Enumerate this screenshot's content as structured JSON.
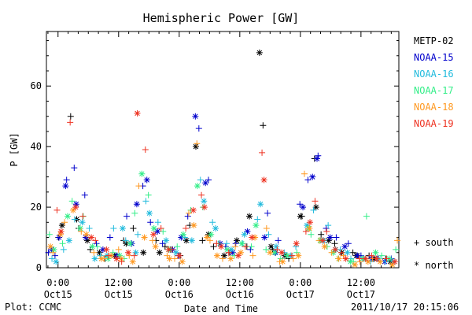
{
  "footer": {
    "plot_label": "Plot: CCMC",
    "timestamp": "2011/10/17 20:15:06"
  },
  "chart_data": {
    "type": "scatter",
    "title": "Hemispheric Power [GW]",
    "xlabel": "Date and Time",
    "ylabel": "P [GW]",
    "x_unit": "hours since 2011-10-15 00:00 UT",
    "xlim": [
      -2.3,
      67.5
    ],
    "ylim": [
      0,
      78
    ],
    "y_ticks": [
      0,
      20,
      40,
      60
    ],
    "x_ticks": [
      {
        "x": 0,
        "line1": "0:00",
        "line2": "Oct15"
      },
      {
        "x": 12,
        "line1": "12:00",
        "line2": "Oct15"
      },
      {
        "x": 24,
        "line1": "0:00",
        "line2": "Oct16"
      },
      {
        "x": 36,
        "line1": "12:00",
        "line2": "Oct16"
      },
      {
        "x": 48,
        "line1": "0:00",
        "line2": "Oct17"
      },
      {
        "x": 60,
        "line1": "12:00",
        "line2": "Oct17"
      }
    ],
    "marker_legend": [
      {
        "symbol": "+",
        "label": "south"
      },
      {
        "symbol": "*",
        "label": "north"
      }
    ],
    "series": [
      {
        "name": "METP-02",
        "color": "#000000",
        "south": [
          [
            0.1,
            10
          ],
          [
            2.5,
            50
          ],
          [
            4.1,
            13
          ],
          [
            6.4,
            6
          ],
          [
            9.3,
            3
          ],
          [
            13,
            9
          ],
          [
            14.9,
            13
          ],
          [
            19.4,
            9
          ],
          [
            21.2,
            7
          ],
          [
            24.2,
            4
          ],
          [
            26.1,
            14
          ],
          [
            28.6,
            9
          ],
          [
            30.8,
            7
          ],
          [
            34,
            5
          ],
          [
            37.4,
            7
          ],
          [
            40.6,
            47
          ],
          [
            42.5,
            6
          ],
          [
            45.7,
            3
          ],
          [
            48.3,
            17
          ],
          [
            50.8,
            36
          ],
          [
            52.1,
            11
          ],
          [
            54.8,
            8
          ],
          [
            58.4,
            5
          ],
          [
            61.6,
            4
          ],
          [
            64.9,
            3
          ]
        ],
        "north": [
          [
            0.8,
            14
          ],
          [
            3.7,
            16
          ],
          [
            5.8,
            9
          ],
          [
            8.2,
            5
          ],
          [
            11.2,
            4
          ],
          [
            13.5,
            8
          ],
          [
            16.9,
            5
          ],
          [
            20.1,
            5
          ],
          [
            22.3,
            6
          ],
          [
            25.4,
            9
          ],
          [
            27.3,
            40
          ],
          [
            29.8,
            11
          ],
          [
            32.9,
            4
          ],
          [
            35.4,
            9
          ],
          [
            37.9,
            17
          ],
          [
            39.9,
            71
          ],
          [
            42.2,
            7
          ],
          [
            44.9,
            4
          ],
          [
            48,
            17
          ],
          [
            51.1,
            20
          ],
          [
            53.6,
            9
          ],
          [
            56.2,
            5
          ],
          [
            59.1,
            4
          ],
          [
            62.6,
            3
          ],
          [
            65.8,
            2
          ]
        ]
      },
      {
        "name": "NOAA-15",
        "color": "#0000cc",
        "south": [
          [
            -1.9,
            5
          ],
          [
            -0.6,
            4
          ],
          [
            1.7,
            29
          ],
          [
            3.2,
            33
          ],
          [
            5.3,
            24
          ],
          [
            7.6,
            8
          ],
          [
            10.3,
            10
          ],
          [
            13.6,
            17
          ],
          [
            16.8,
            27
          ],
          [
            18.3,
            15
          ],
          [
            20.7,
            8
          ],
          [
            23.8,
            4
          ],
          [
            25.7,
            17
          ],
          [
            27.9,
            46
          ],
          [
            29.8,
            29
          ],
          [
            33.2,
            7
          ],
          [
            35.2,
            8
          ],
          [
            38.1,
            6
          ],
          [
            41.5,
            18
          ],
          [
            43.6,
            9
          ],
          [
            47.9,
            21
          ],
          [
            49.5,
            29
          ],
          [
            51.5,
            37
          ],
          [
            53.1,
            13
          ],
          [
            55.1,
            10
          ],
          [
            57.5,
            8
          ],
          [
            60,
            4
          ],
          [
            63.3,
            3
          ],
          [
            66,
            3
          ]
        ],
        "north": [
          [
            -1.3,
            6
          ],
          [
            0.2,
            10
          ],
          [
            1.5,
            27
          ],
          [
            3.6,
            21
          ],
          [
            5.5,
            10
          ],
          [
            8.9,
            6
          ],
          [
            11.7,
            4
          ],
          [
            14.6,
            8
          ],
          [
            15.6,
            21
          ],
          [
            17.6,
            29
          ],
          [
            19.7,
            12
          ],
          [
            22.7,
            6
          ],
          [
            24.4,
            10
          ],
          [
            27.2,
            50
          ],
          [
            29.2,
            28
          ],
          [
            32.1,
            8
          ],
          [
            34.6,
            5
          ],
          [
            37.5,
            12
          ],
          [
            40.9,
            10
          ],
          [
            43.1,
            5
          ],
          [
            48.5,
            20
          ],
          [
            50.4,
            30
          ],
          [
            51.3,
            36
          ],
          [
            53.9,
            10
          ],
          [
            56.8,
            7
          ],
          [
            59.3,
            4
          ],
          [
            62,
            3
          ],
          [
            64.7,
            2
          ]
        ]
      },
      {
        "name": "NOAA-16",
        "color": "#22bbdd",
        "south": [
          [
            -1.2,
            3
          ],
          [
            1.1,
            6
          ],
          [
            3.3,
            16
          ],
          [
            6.2,
            13
          ],
          [
            8.4,
            4
          ],
          [
            11,
            13
          ],
          [
            13.4,
            9
          ],
          [
            15.8,
            11
          ],
          [
            17.4,
            22
          ],
          [
            19.8,
            15
          ],
          [
            22.4,
            6
          ],
          [
            25.1,
            10
          ],
          [
            28.2,
            29
          ],
          [
            30.6,
            15
          ],
          [
            33.4,
            8
          ],
          [
            36.6,
            8
          ],
          [
            39.5,
            16
          ],
          [
            41.7,
            11
          ],
          [
            44.8,
            5
          ],
          [
            47.1,
            7
          ],
          [
            50.6,
            19
          ],
          [
            53.5,
            14
          ],
          [
            55.9,
            6
          ],
          [
            58,
            3
          ],
          [
            61.9,
            2
          ],
          [
            64.8,
            2
          ]
        ],
        "north": [
          [
            -0.4,
            2
          ],
          [
            2.2,
            9
          ],
          [
            4.8,
            15
          ],
          [
            7.3,
            3
          ],
          [
            9.7,
            4
          ],
          [
            12.8,
            13
          ],
          [
            15.4,
            5
          ],
          [
            18.1,
            18
          ],
          [
            21.4,
            9
          ],
          [
            23.4,
            5
          ],
          [
            26.5,
            9
          ],
          [
            28.9,
            22
          ],
          [
            31.2,
            13
          ],
          [
            34.3,
            6
          ],
          [
            36.9,
            11
          ],
          [
            40.1,
            21
          ],
          [
            43.2,
            7
          ],
          [
            46.1,
            4
          ],
          [
            49.3,
            14
          ],
          [
            52.6,
            9
          ],
          [
            55,
            6
          ],
          [
            57.3,
            5
          ],
          [
            60.6,
            3
          ],
          [
            63.5,
            3
          ],
          [
            66.4,
            2
          ]
        ]
      },
      {
        "name": "NOAA-17",
        "color": "#33ee88",
        "south": [
          [
            -1.7,
            11
          ],
          [
            0.9,
            8
          ],
          [
            2.8,
            22
          ],
          [
            5,
            17
          ],
          [
            7.8,
            7
          ],
          [
            10.9,
            5
          ],
          [
            13.1,
            3
          ],
          [
            15.2,
            18
          ],
          [
            17.9,
            24
          ],
          [
            20.8,
            12
          ],
          [
            23.6,
            7
          ],
          [
            26.3,
            19
          ],
          [
            28.7,
            20
          ],
          [
            31.8,
            8
          ],
          [
            34.9,
            4
          ],
          [
            38.3,
            7
          ],
          [
            41.2,
            6
          ],
          [
            44.1,
            3
          ],
          [
            47.3,
            5
          ],
          [
            50.1,
            11
          ],
          [
            53.3,
            7
          ],
          [
            55.5,
            3
          ],
          [
            58.5,
            2
          ],
          [
            61.1,
            17
          ],
          [
            64.1,
            4
          ],
          [
            66.9,
            6
          ]
        ],
        "north": [
          [
            -0.8,
            6
          ],
          [
            1.9,
            17
          ],
          [
            4.4,
            13
          ],
          [
            6.8,
            7
          ],
          [
            9.9,
            3
          ],
          [
            12.2,
            4
          ],
          [
            14.3,
            8
          ],
          [
            16.6,
            31
          ],
          [
            19,
            13
          ],
          [
            22,
            6
          ],
          [
            24.8,
            11
          ],
          [
            27.6,
            27
          ],
          [
            30.3,
            11
          ],
          [
            33.5,
            6
          ],
          [
            36.4,
            8
          ],
          [
            39.2,
            14
          ],
          [
            42.9,
            5
          ],
          [
            45.4,
            4
          ],
          [
            49.6,
            13
          ],
          [
            51.9,
            9
          ],
          [
            54.5,
            5
          ],
          [
            57.9,
            2
          ],
          [
            60.3,
            3
          ],
          [
            62.9,
            5
          ],
          [
            65.6,
            3
          ]
        ]
      },
      {
        "name": "NOAA-18",
        "color": "#ff9922",
        "south": [
          [
            -1,
            5
          ],
          [
            1.3,
            15
          ],
          [
            4.6,
            12
          ],
          [
            7.1,
            5
          ],
          [
            9.1,
            3
          ],
          [
            12,
            6
          ],
          [
            14.1,
            4
          ],
          [
            16,
            27
          ],
          [
            18.7,
            9
          ],
          [
            21.6,
            4
          ],
          [
            23.1,
            3
          ],
          [
            25.9,
            18
          ],
          [
            27.5,
            41
          ],
          [
            30.1,
            9
          ],
          [
            32.6,
            3
          ],
          [
            35.1,
            7
          ],
          [
            38.6,
            4
          ],
          [
            41.3,
            13
          ],
          [
            43.9,
            2
          ],
          [
            46.6,
            3
          ],
          [
            48.8,
            31
          ],
          [
            51.7,
            9
          ],
          [
            54.2,
            5
          ],
          [
            56.5,
            4
          ],
          [
            59.8,
            2
          ],
          [
            62.3,
            3
          ],
          [
            67.2,
            9
          ]
        ],
        "north": [
          [
            -1.5,
            7
          ],
          [
            0.5,
            11
          ],
          [
            3,
            19
          ],
          [
            5.6,
            11
          ],
          [
            8.6,
            3
          ],
          [
            10.5,
            4
          ],
          [
            12.5,
            3
          ],
          [
            14.8,
            2
          ],
          [
            17.1,
            10
          ],
          [
            19.3,
            7
          ],
          [
            22.1,
            3
          ],
          [
            24.6,
            2
          ],
          [
            26.9,
            14
          ],
          [
            29.5,
            10
          ],
          [
            31.5,
            4
          ],
          [
            34.2,
            3
          ],
          [
            36.2,
            5
          ],
          [
            39,
            10
          ],
          [
            42,
            5
          ],
          [
            44.5,
            2
          ],
          [
            47.6,
            4
          ],
          [
            49.8,
            13
          ],
          [
            52.8,
            7
          ],
          [
            55.6,
            3
          ],
          [
            58.8,
            1
          ],
          [
            61.4,
            2
          ],
          [
            63.8,
            2
          ],
          [
            66.2,
            1
          ]
        ]
      },
      {
        "name": "NOAA-19",
        "color": "#ee3322",
        "south": [
          [
            -0.2,
            19
          ],
          [
            2.4,
            48
          ],
          [
            4.9,
            17
          ],
          [
            7.4,
            9
          ],
          [
            10,
            4
          ],
          [
            12.6,
            2
          ],
          [
            15.1,
            4
          ],
          [
            17.3,
            39
          ],
          [
            20.4,
            13
          ],
          [
            22.6,
            6
          ],
          [
            25.3,
            13
          ],
          [
            28.4,
            24
          ],
          [
            31.4,
            8
          ],
          [
            33.8,
            5
          ],
          [
            37.1,
            7
          ],
          [
            40.4,
            38
          ],
          [
            43.4,
            6
          ],
          [
            46.3,
            4
          ],
          [
            49.1,
            12
          ],
          [
            50.9,
            22
          ],
          [
            53.2,
            12
          ],
          [
            56.1,
            5
          ],
          [
            59.7,
            3
          ],
          [
            62.1,
            4
          ],
          [
            65.1,
            3
          ]
        ],
        "north": [
          [
            0.6,
            12
          ],
          [
            3.5,
            20
          ],
          [
            6.6,
            10
          ],
          [
            9.6,
            6
          ],
          [
            11.6,
            3
          ],
          [
            13.9,
            5
          ],
          [
            15.7,
            51
          ],
          [
            18.9,
            11
          ],
          [
            21.9,
            6
          ],
          [
            24,
            4
          ],
          [
            26.8,
            19
          ],
          [
            29,
            20
          ],
          [
            32.3,
            7
          ],
          [
            35.7,
            4
          ],
          [
            38.4,
            10
          ],
          [
            40.8,
            29
          ],
          [
            44.3,
            5
          ],
          [
            47.2,
            8
          ],
          [
            49.9,
            15
          ],
          [
            52.4,
            9
          ],
          [
            54.9,
            6
          ],
          [
            57,
            3
          ],
          [
            60.9,
            3
          ],
          [
            63.1,
            3
          ],
          [
            66.7,
            2
          ]
        ]
      }
    ]
  }
}
